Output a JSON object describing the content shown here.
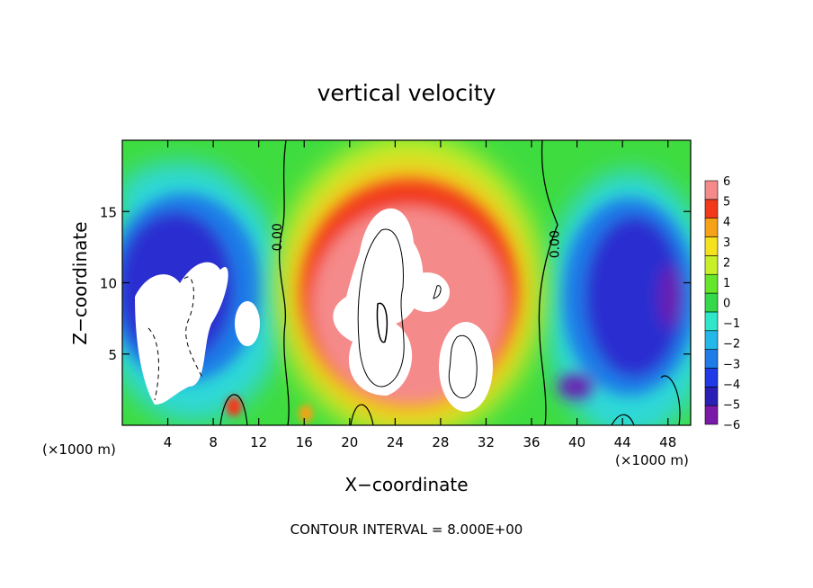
{
  "chart_data": {
    "type": "heatmap",
    "title": "vertical velocity",
    "xlabel": "X−coordinate",
    "ylabel": "Z−coordinate",
    "x_unit_label": "(×1000 m)",
    "z_unit_label": "(×1000 m)",
    "xlim": [
      0,
      50
    ],
    "ylim": [
      0,
      20
    ],
    "x_ticks": [
      4,
      8,
      12,
      16,
      20,
      24,
      28,
      32,
      36,
      40,
      44,
      48
    ],
    "x_tick_labels": [
      "4",
      "8",
      "12",
      "16",
      "20",
      "24",
      "28",
      "32",
      "36",
      "40",
      "44",
      "48"
    ],
    "y_ticks": [
      5,
      10,
      15
    ],
    "y_tick_labels": [
      "5",
      "10",
      "15"
    ],
    "colorbar": {
      "levels": [
        -6,
        -5,
        -4,
        -3,
        -2,
        -1,
        0,
        1,
        2,
        3,
        4,
        5,
        6
      ],
      "labels": [
        "−6",
        "−5",
        "−4",
        "−3",
        "−2",
        "−1",
        "0",
        "1",
        "2",
        "3",
        "4",
        "5",
        "6"
      ],
      "colors": [
        "#7a1aa8",
        "#2a1fb5",
        "#1f3ae6",
        "#1e7be8",
        "#23b8e8",
        "#2fe6c8",
        "#33d94a",
        "#66e62a",
        "#c8f028",
        "#f5e21e",
        "#f5a219",
        "#f23a1a",
        "#f58a8a"
      ]
    },
    "contour_labels": [
      {
        "text": "0.00",
        "x": 14.0,
        "z": 13.2
      },
      {
        "text": "0.00",
        "x": 38.4,
        "z": 12.7
      }
    ],
    "zero_contours_x": [
      14.5,
      37.0
    ],
    "updraft_core": {
      "x_range": [
        17,
        35
      ],
      "max_z": 18
    },
    "downdraft_regions": [
      {
        "x_range": [
          0,
          13
        ]
      },
      {
        "x_range": [
          38,
          50
        ]
      }
    ],
    "annotation": "CONTOUR INTERVAL = 8.000E+00"
  }
}
